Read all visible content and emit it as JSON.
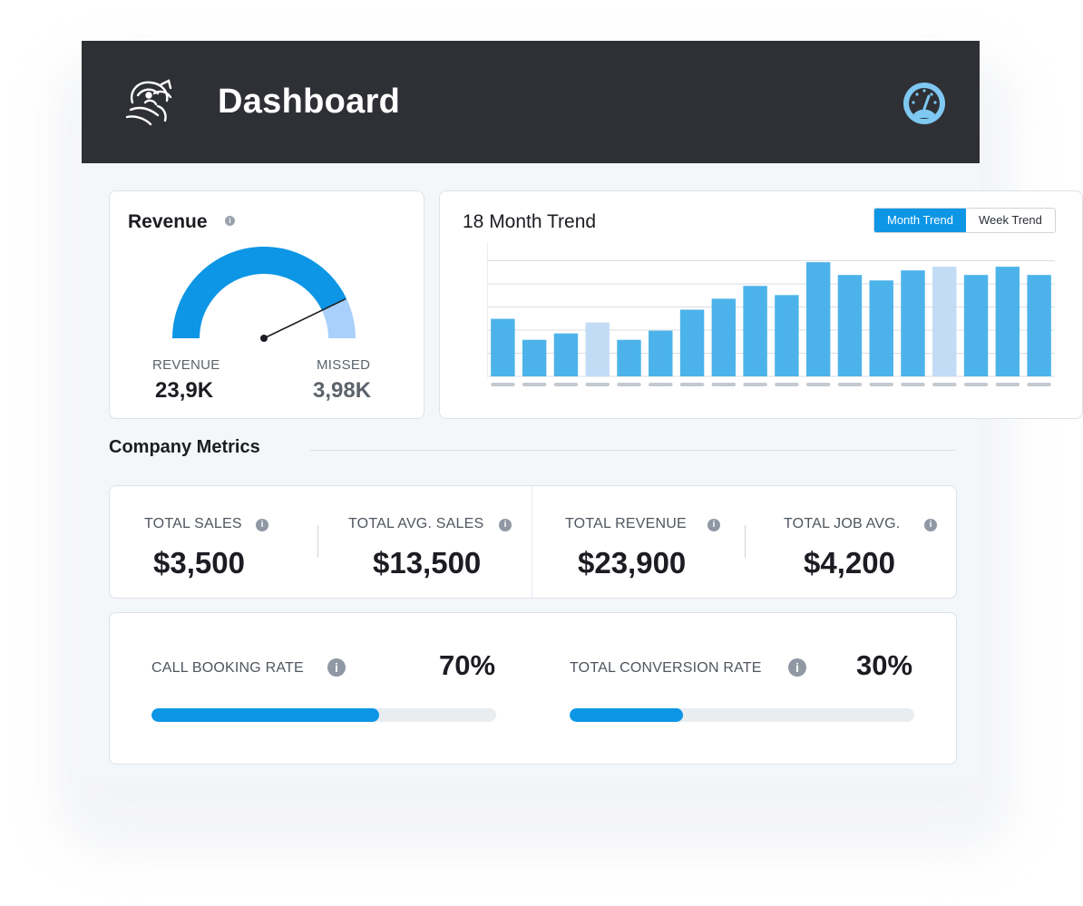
{
  "app": {
    "title": "Dashboard"
  },
  "revenue_card": {
    "title": "Revenue",
    "gauge_fraction": 0.857,
    "revenue_label": "REVENUE",
    "revenue_value": "23,9K",
    "missed_label": "MISSED",
    "missed_value": "3,98K"
  },
  "trend_card": {
    "title": "18 Month Trend",
    "tabs": [
      {
        "label": "Month Trend",
        "active": true
      },
      {
        "label": "Week Trend",
        "active": false
      }
    ]
  },
  "chart_data": {
    "type": "bar",
    "title": "18 Month Trend",
    "categories": [
      "",
      "",
      "",
      "",
      "",
      "",
      "",
      "",
      "",
      "",
      "",
      "",
      "",
      "",
      "",
      "",
      "",
      ""
    ],
    "values": [
      63,
      40,
      47,
      59,
      40,
      50,
      73,
      85,
      99,
      89,
      125,
      111,
      105,
      116,
      120,
      111,
      120,
      111
    ],
    "highlighted": [
      false,
      false,
      false,
      true,
      false,
      false,
      false,
      false,
      false,
      false,
      false,
      false,
      false,
      false,
      true,
      false,
      false,
      false
    ],
    "ylim": [
      0,
      135
    ],
    "grid": true,
    "colors": {
      "bar": "#4cb3ea",
      "highlight": "#c2dcf5"
    }
  },
  "company_metrics": {
    "title": "Company Metrics",
    "items": [
      {
        "label": "TOTAL SALES",
        "value": "$3,500"
      },
      {
        "label": "TOTAL AVG. SALES",
        "value": "$13,500"
      },
      {
        "label": "TOTAL REVENUE",
        "value": "$23,900"
      },
      {
        "label": "TOTAL JOB AVG.",
        "value": "$4,200"
      }
    ]
  },
  "rates": [
    {
      "label": "CALL BOOKING RATE",
      "value": "70%",
      "fraction": 0.66
    },
    {
      "label": "TOTAL CONVERSION RATE",
      "value": "30%",
      "fraction": 0.33
    }
  ],
  "colors": {
    "accent": "#0d96e6",
    "header_bg": "#2e3035",
    "gauge_primary": "#0d96e6",
    "gauge_secondary": "#a9d0fb",
    "missed_text": "#5c636b"
  },
  "icons": {
    "logo": "mascot-logo-icon",
    "dashboard": "speedometer-icon",
    "info": "info-icon"
  }
}
